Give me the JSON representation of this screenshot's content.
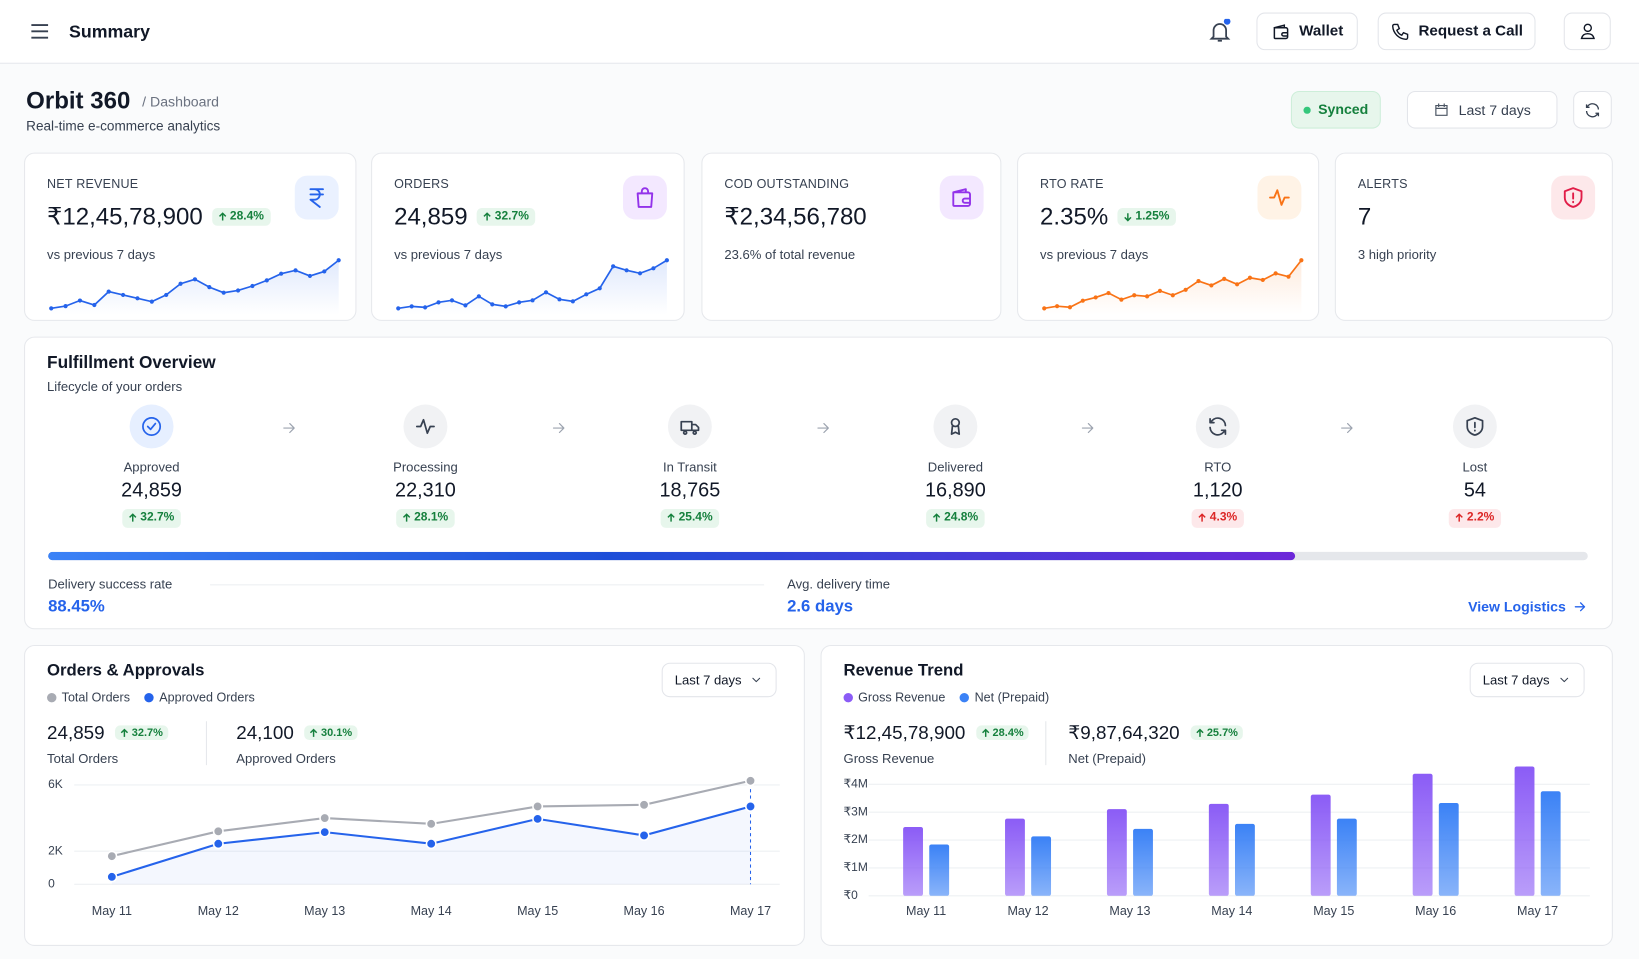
{
  "header": {
    "title": "Summary",
    "buttons": [
      "Wallet",
      "Request a Call"
    ]
  },
  "page": {
    "title": "Orbit 360",
    "breadcrumb": "/ Dashboard",
    "subtitle": "Real-time e-commerce analytics",
    "status": "Synced",
    "range": "Last 7 days"
  },
  "kpis": [
    {
      "label": "NET REVENUE",
      "value": "₹12,45,78,900",
      "change": "28.4%",
      "direction": "up",
      "tone": "good",
      "note": "vs previous 7 days",
      "color": "#2563eb",
      "trend": [
        8,
        10,
        15,
        11,
        23,
        20,
        17,
        14,
        20,
        30,
        34,
        27,
        22,
        24,
        28,
        33,
        39,
        42,
        37,
        41,
        51
      ]
    },
    {
      "label": "ORDERS",
      "value": "24,859",
      "change": "32.7%",
      "direction": "up",
      "tone": "good",
      "note": "vs previous 7 days",
      "color": "#2563eb",
      "trend": [
        8,
        10,
        9,
        14,
        16,
        11,
        20,
        12,
        10,
        14,
        16,
        24,
        17,
        15,
        22,
        28,
        50,
        46,
        43,
        48,
        56
      ]
    },
    {
      "label": "COD OUTSTANDING",
      "value": "₹2,34,56,780",
      "note": "23.6% of total revenue"
    },
    {
      "label": "RTO RATE",
      "value": "2.35%",
      "change": "1.25%",
      "direction": "down",
      "tone": "good",
      "note": "vs previous 7 days",
      "color": "#f97316",
      "trend": [
        10,
        12,
        11,
        17,
        20,
        24,
        18,
        22,
        21,
        26,
        22,
        27,
        35,
        31,
        37,
        32,
        38,
        36,
        42,
        39,
        54
      ]
    },
    {
      "label": "ALERTS",
      "value": "7",
      "note": "3 high priority"
    }
  ],
  "fulfillment": {
    "title": "Fulfillment Overview",
    "subtitle": "Lifecycle of your orders",
    "stages": [
      {
        "label": "Approved",
        "value": "24,859",
        "change": "32.7%",
        "direction": "up",
        "tone": "good"
      },
      {
        "label": "Processing",
        "value": "22,310",
        "change": "28.1%",
        "direction": "up",
        "tone": "good"
      },
      {
        "label": "In Transit",
        "value": "18,765",
        "change": "25.4%",
        "direction": "up",
        "tone": "good"
      },
      {
        "label": "Delivered",
        "value": "16,890",
        "change": "24.8%",
        "direction": "up",
        "tone": "good"
      },
      {
        "label": "RTO",
        "value": "1,120",
        "change": "4.3%",
        "direction": "up",
        "tone": "bad"
      },
      {
        "label": "Lost",
        "value": "54",
        "change": "2.2%",
        "direction": "up",
        "tone": "bad"
      }
    ],
    "progress": 81,
    "metrics": [
      {
        "label": "Delivery success rate",
        "value": "88.45%"
      },
      {
        "label": "Avg. delivery time",
        "value": "2.6 days"
      }
    ],
    "link": "View Logistics"
  },
  "charts": [
    {
      "title": "Orders & Approvals",
      "range": "Last 7 days",
      "summary": [
        {
          "value": "24,859",
          "change": "32.7%",
          "direction": "up",
          "tone": "good",
          "label": "Total Orders"
        },
        {
          "value": "24,100",
          "change": "30.1%",
          "direction": "up",
          "tone": "good",
          "label": "Approved Orders"
        }
      ],
      "chart_data": {
        "type": "line",
        "categories": [
          "May 11",
          "May 12",
          "May 13",
          "May 14",
          "May 15",
          "May 16",
          "May 17"
        ],
        "series": [
          {
            "name": "Total Orders",
            "color": "#a8abb3",
            "values": [
              1700,
              3200,
              4000,
              3650,
              4700,
              4800,
              6250
            ]
          },
          {
            "name": "Approved Orders",
            "color": "#2563eb",
            "values": [
              450,
              2450,
              3150,
              2450,
              3950,
              2950,
              4700
            ]
          }
        ],
        "ylim": [
          0,
          6500
        ],
        "yticks": [
          0,
          {
            "value": 2000,
            "label": "2K"
          },
          {
            "value": 6000,
            "label": "6K"
          }
        ],
        "grid": true
      }
    },
    {
      "title": "Revenue Trend",
      "range": "Last 7 days",
      "summary": [
        {
          "value": "₹12,45,78,900",
          "change": "28.4%",
          "direction": "up",
          "tone": "good",
          "label": "Gross Revenue"
        },
        {
          "value": "₹9,87,64,320",
          "change": "25.7%",
          "direction": "up",
          "tone": "good",
          "label": "Net (Prepaid)"
        }
      ],
      "chart_data": {
        "type": "bar",
        "categories": [
          "May 11",
          "May 12",
          "May 13",
          "May 14",
          "May 15",
          "May 16",
          "May 17"
        ],
        "series": [
          {
            "name": "Gross Revenue",
            "color": "#8b5cf6",
            "values": [
              2470000,
              2770000,
              3110000,
              3300000,
              3630000,
              4380000,
              4640000
            ]
          },
          {
            "name": "Net (Prepaid)",
            "color": "#3b82f6",
            "values": [
              1840000,
              2130000,
              2400000,
              2580000,
              2770000,
              3330000,
              3750000
            ]
          }
        ],
        "ylim": [
          0,
          4800000
        ],
        "yticks": [
          {
            "value": 0,
            "label": "₹0"
          },
          {
            "value": 1000000,
            "label": "₹1M"
          },
          {
            "value": 2000000,
            "label": "₹2M"
          },
          {
            "value": 3000000,
            "label": "₹3M"
          },
          {
            "value": 4000000,
            "label": "₹4M"
          }
        ],
        "grid": true
      }
    }
  ]
}
